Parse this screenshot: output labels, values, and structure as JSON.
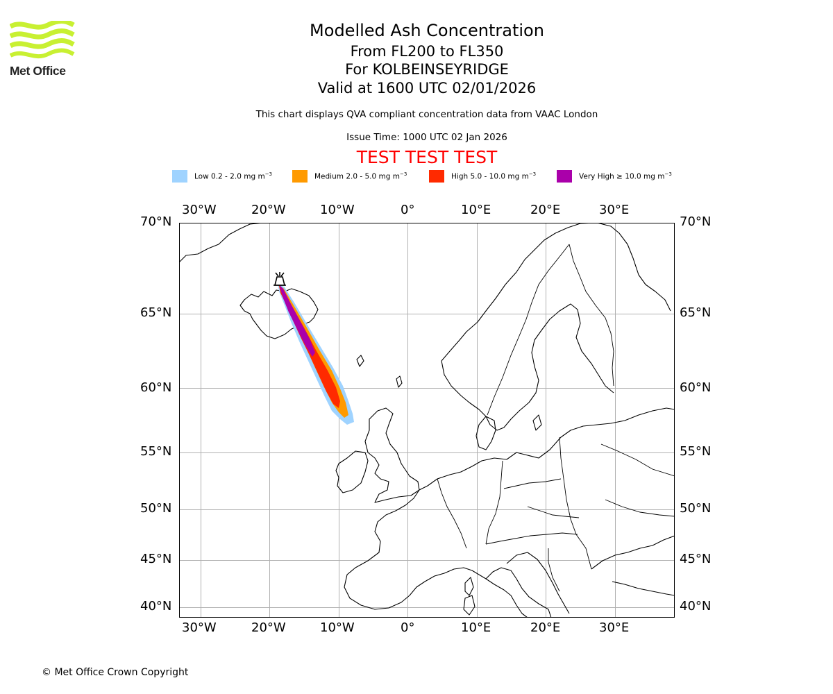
{
  "logo": {
    "text": "Met Office"
  },
  "title": "Modelled Ash Concentration",
  "subtitle_levels": "From FL200 to FL350",
  "subtitle_volcano": "For KOLBEINSEYRIDGE",
  "subtitle_valid": "Valid at 1600 UTC 02/01/2026",
  "description": "This chart displays QVA compliant concentration data from VAAC London",
  "issue_time": "Issue Time: 1000 UTC 02 Jan 2026",
  "test_banner": "TEST TEST TEST",
  "legend": [
    {
      "name": "low",
      "label": "Low 0.2 - 2.0 mg m",
      "color": "#9fd3ff"
    },
    {
      "name": "medium",
      "label": "Medium 2.0 - 5.0 mg m",
      "color": "#ff9a00"
    },
    {
      "name": "high",
      "label": "High 5.0 - 10.0 mg m",
      "color": "#ff2a00"
    },
    {
      "name": "very-high",
      "label": "Very High ≥ 10.0 mg m",
      "color": "#aa00aa"
    }
  ],
  "legend_exponent": "−3",
  "longitude_ticks": [
    "30°W",
    "20°W",
    "10°W",
    "0°",
    "10°E",
    "20°E",
    "30°E"
  ],
  "latitude_ticks": [
    "70°N",
    "65°N",
    "60°N",
    "55°N",
    "50°N",
    "45°N",
    "40°N"
  ],
  "copyright": "© Met Office Crown Copyright"
}
